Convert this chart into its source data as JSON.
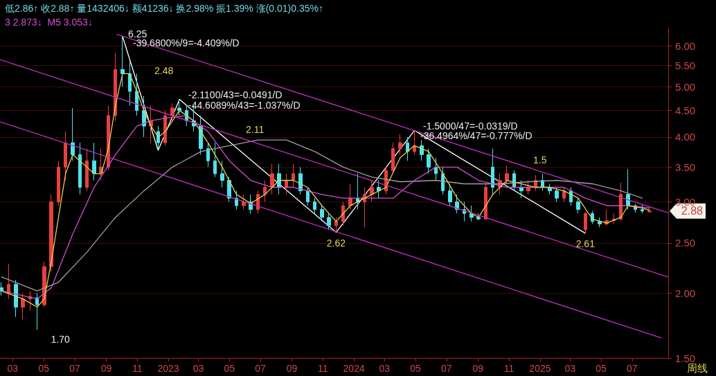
{
  "chart_data": {
    "type": "candlestick",
    "title": "低2.86↑ 收2.88↑ 量1432406↓ 额41236↓ 换2.98% 振1.39% 涨(0.01)0.35%↑",
    "subtitle": "3 2.873↓  M5 3.053↓",
    "x": [
      "2022-02-07",
      "2022-02-21",
      "2022-03-07",
      "2022-03-21",
      "2022-04-04",
      "2022-04-18",
      "2022-05-02",
      "2022-05-16",
      "2022-05-30",
      "2022-06-13",
      "2022-06-27",
      "2022-07-11",
      "2022-07-25",
      "2022-08-08",
      "2022-08-22",
      "2022-09-05",
      "2022-09-19",
      "2022-10-03",
      "2022-10-17",
      "2022-10-31",
      "2022-11-14",
      "2022-11-28",
      "2022-12-12",
      "2022-12-26",
      "2023-01-09",
      "2023-01-23",
      "2023-02-06",
      "2023-02-20",
      "2023-03-06",
      "2023-03-20",
      "2023-04-03",
      "2023-04-17",
      "2023-05-01",
      "2023-05-15",
      "2023-05-29",
      "2023-06-12",
      "2023-06-26",
      "2023-07-10",
      "2023-07-24",
      "2023-08-07",
      "2023-08-21",
      "2023-09-04",
      "2023-09-18",
      "2023-10-02",
      "2023-10-16",
      "2023-10-30",
      "2023-11-13",
      "2023-11-27",
      "2023-12-11",
      "2023-12-25",
      "2024-01-08",
      "2024-01-22",
      "2024-02-05",
      "2024-02-19",
      "2024-03-04",
      "2024-03-18",
      "2024-04-01",
      "2024-04-15",
      "2024-04-29",
      "2024-05-13",
      "2024-05-27",
      "2024-06-10",
      "2024-06-24",
      "2024-07-08",
      "2024-07-22",
      "2024-08-05",
      "2024-08-19",
      "2024-09-02",
      "2024-09-16",
      "2024-09-30",
      "2024-10-14",
      "2024-10-28",
      "2024-11-11",
      "2024-11-25",
      "2024-12-09",
      "2024-12-23",
      "2025-01-06",
      "2025-01-20",
      "2025-02-03",
      "2025-02-17",
      "2025-03-03",
      "2025-03-17",
      "2025-03-31",
      "2025-04-14",
      "2025-04-28",
      "2025-05-12",
      "2025-05-26",
      "2025-06-09",
      "2025-06-23",
      "2025-07-07",
      "2025-07-21",
      "2025-08-04"
    ],
    "ohlc": [
      [
        2.05,
        2.1,
        1.98,
        2.02
      ],
      [
        2.0,
        2.28,
        1.95,
        2.08
      ],
      [
        2.08,
        2.12,
        1.8,
        1.88
      ],
      [
        1.88,
        2.0,
        1.78,
        1.95
      ],
      [
        1.95,
        2.02,
        1.85,
        1.97
      ],
      [
        1.96,
        2.0,
        1.7,
        1.9
      ],
      [
        1.9,
        2.3,
        1.88,
        2.25
      ],
      [
        2.25,
        3.1,
        2.2,
        3.0
      ],
      [
        3.0,
        3.6,
        2.95,
        3.5
      ],
      [
        3.5,
        4.1,
        3.3,
        3.9
      ],
      [
        3.9,
        4.55,
        3.6,
        3.7
      ],
      [
        3.7,
        3.9,
        3.1,
        3.2
      ],
      [
        3.2,
        3.8,
        3.15,
        3.6
      ],
      [
        3.6,
        3.9,
        3.3,
        3.4
      ],
      [
        3.4,
        3.8,
        3.3,
        3.5
      ],
      [
        3.5,
        4.6,
        3.45,
        4.4
      ],
      [
        4.4,
        5.8,
        4.3,
        5.4
      ],
      [
        5.4,
        6.25,
        5.0,
        5.3
      ],
      [
        5.3,
        5.6,
        4.6,
        4.9
      ],
      [
        4.9,
        5.3,
        4.4,
        4.5
      ],
      [
        4.5,
        4.8,
        4.0,
        4.2
      ],
      [
        4.2,
        4.6,
        3.9,
        4.3
      ],
      [
        4.1,
        4.2,
        3.77,
        3.9
      ],
      [
        3.9,
        4.5,
        3.85,
        4.4
      ],
      [
        4.4,
        4.65,
        4.3,
        4.55
      ],
      [
        4.55,
        4.73,
        4.4,
        4.5
      ],
      [
        4.5,
        4.6,
        4.2,
        4.3
      ],
      [
        4.3,
        4.6,
        4.1,
        4.2
      ],
      [
        4.2,
        4.4,
        3.7,
        3.8
      ],
      [
        3.8,
        3.9,
        3.5,
        3.6
      ],
      [
        3.6,
        3.9,
        3.35,
        3.4
      ],
      [
        3.4,
        3.6,
        3.2,
        3.3
      ],
      [
        3.3,
        3.35,
        3.0,
        3.05
      ],
      [
        3.05,
        3.15,
        2.9,
        2.95
      ],
      [
        2.95,
        3.1,
        2.9,
        3.0
      ],
      [
        3.0,
        3.1,
        2.85,
        2.9
      ],
      [
        2.9,
        3.15,
        2.85,
        3.1
      ],
      [
        3.1,
        3.3,
        3.0,
        3.2
      ],
      [
        3.2,
        3.55,
        3.1,
        3.4
      ],
      [
        3.4,
        3.55,
        3.1,
        3.2
      ],
      [
        3.2,
        3.4,
        3.1,
        3.3
      ],
      [
        3.3,
        3.55,
        3.2,
        3.4
      ],
      [
        3.4,
        3.5,
        3.1,
        3.15
      ],
      [
        3.15,
        3.2,
        2.95,
        3.0
      ],
      [
        3.0,
        3.05,
        2.85,
        2.9
      ],
      [
        2.9,
        2.95,
        2.75,
        2.8
      ],
      [
        2.8,
        2.85,
        2.65,
        2.7
      ],
      [
        2.7,
        2.8,
        2.62,
        2.75
      ],
      [
        2.75,
        3.0,
        2.7,
        2.95
      ],
      [
        2.95,
        3.25,
        2.9,
        3.05
      ],
      [
        3.05,
        3.4,
        2.9,
        3.0
      ],
      [
        3.0,
        3.2,
        2.68,
        3.1
      ],
      [
        3.1,
        3.3,
        3.0,
        3.2
      ],
      [
        3.2,
        3.3,
        3.05,
        3.15
      ],
      [
        3.15,
        3.5,
        3.1,
        3.45
      ],
      [
        3.45,
        3.9,
        3.4,
        3.8
      ],
      [
        3.8,
        4.05,
        3.7,
        3.9
      ],
      [
        3.9,
        4.0,
        3.6,
        3.75
      ],
      [
        3.75,
        4.12,
        3.7,
        3.85
      ],
      [
        3.85,
        3.95,
        3.6,
        3.7
      ],
      [
        3.7,
        3.8,
        3.4,
        3.5
      ],
      [
        3.5,
        3.65,
        3.3,
        3.4
      ],
      [
        3.4,
        3.5,
        3.1,
        3.15
      ],
      [
        3.15,
        3.25,
        2.95,
        3.0
      ],
      [
        3.0,
        3.1,
        2.85,
        2.9
      ],
      [
        2.9,
        3.0,
        2.75,
        2.85
      ],
      [
        2.85,
        2.95,
        2.75,
        2.8
      ],
      [
        2.8,
        2.85,
        2.77,
        2.78
      ],
      [
        2.78,
        3.25,
        2.77,
        3.2
      ],
      [
        3.5,
        3.8,
        3.1,
        3.2
      ],
      [
        3.2,
        3.4,
        3.1,
        3.3
      ],
      [
        3.3,
        3.52,
        3.25,
        3.4
      ],
      [
        3.4,
        3.45,
        3.15,
        3.2
      ],
      [
        3.2,
        3.3,
        3.05,
        3.15
      ],
      [
        3.15,
        3.3,
        3.1,
        3.2
      ],
      [
        3.2,
        3.38,
        3.15,
        3.3
      ],
      [
        3.3,
        3.4,
        3.15,
        3.2
      ],
      [
        3.2,
        3.25,
        3.1,
        3.15
      ],
      [
        3.15,
        3.2,
        3.0,
        3.05
      ],
      [
        3.05,
        3.2,
        3.0,
        3.15
      ],
      [
        3.15,
        3.2,
        2.95,
        3.0
      ],
      [
        3.0,
        3.05,
        2.85,
        2.9
      ],
      [
        2.65,
        2.87,
        2.61,
        2.85
      ],
      [
        2.85,
        2.88,
        2.72,
        2.75
      ],
      [
        2.75,
        2.8,
        2.68,
        2.72
      ],
      [
        2.72,
        2.9,
        2.7,
        2.76
      ],
      [
        2.76,
        2.85,
        2.72,
        2.78
      ],
      [
        2.78,
        3.27,
        2.76,
        3.1
      ],
      [
        3.1,
        3.47,
        2.9,
        2.95
      ],
      [
        2.95,
        2.97,
        2.86,
        2.9
      ],
      [
        2.9,
        2.96,
        2.85,
        2.88
      ],
      [
        2.87,
        2.93,
        2.86,
        2.88
      ]
    ],
    "colors": [
      "#4fe3ec",
      "#e8403c",
      "#4fe3ec",
      "#e8403c",
      "#e8403c",
      "#4fe3ec",
      "#e8403c",
      "#e8403c",
      "#e8403c",
      "#e8403c",
      "#4fe3ec",
      "#4fe3ec",
      "#e8403c",
      "#4fe3ec",
      "#e8403c",
      "#e8403c",
      "#e8403c",
      "#4fe3ec",
      "#4fe3ec",
      "#4fe3ec",
      "#4fe3ec",
      "#e8403c",
      "#4fe3ec",
      "#e8403c",
      "#e8403c",
      "#4fe3ec",
      "#4fe3ec",
      "#4fe3ec",
      "#4fe3ec",
      "#4fe3ec",
      "#4fe3ec",
      "#4fe3ec",
      "#4fe3ec",
      "#4fe3ec",
      "#e8403c",
      "#4fe3ec",
      "#e8403c",
      "#e8403c",
      "#e8403c",
      "#4fe3ec",
      "#e8403c",
      "#e8403c",
      "#4fe3ec",
      "#4fe3ec",
      "#4fe3ec",
      "#4fe3ec",
      "#4fe3ec",
      "#e8403c",
      "#e8403c",
      "#e8403c",
      "#4fe3ec",
      "#e8403c",
      "#e8403c",
      "#4fe3ec",
      "#e8403c",
      "#e8403c",
      "#e8403c",
      "#4fe3ec",
      "#e8403c",
      "#4fe3ec",
      "#4fe3ec",
      "#4fe3ec",
      "#4fe3ec",
      "#4fe3ec",
      "#4fe3ec",
      "#4fe3ec",
      "#4fe3ec",
      "#4fe3ec",
      "#e8403c",
      "#4fe3ec",
      "#e8403c",
      "#e8403c",
      "#4fe3ec",
      "#4fe3ec",
      "#e8403c",
      "#e8403c",
      "#4fe3ec",
      "#4fe3ec",
      "#4fe3ec",
      "#e8403c",
      "#4fe3ec",
      "#4fe3ec",
      "#e8403c",
      "#4fe3ec",
      "#4fe3ec",
      "#e8403c",
      "#e8403c",
      "#e8403c",
      "#4fe3ec",
      "#4fe3ec",
      "#4fe3ec",
      "#e8403c"
    ],
    "series": [
      {
        "type": "line",
        "color": "#a0a0a0",
        "x": [
          "2022-02-07",
          "2022-04-18",
          "2022-05-30",
          "2022-07-25",
          "2022-09-19",
          "2022-11-14",
          "2023-01-09",
          "2023-03-06",
          "2023-05-01",
          "2023-06-26",
          "2023-08-21",
          "2023-10-16",
          "2023-12-11",
          "2024-02-05",
          "2024-04-01",
          "2024-06-10",
          "2024-08-05",
          "2024-10-14",
          "2024-12-09",
          "2025-02-03",
          "2025-04-14",
          "2025-06-09",
          "2025-07-21"
        ],
        "values": [
          2.15,
          2.02,
          2.1,
          2.4,
          2.8,
          3.15,
          3.5,
          3.75,
          3.85,
          3.95,
          3.95,
          3.75,
          3.5,
          3.35,
          3.28,
          3.3,
          3.25,
          3.25,
          3.28,
          3.3,
          3.25,
          3.15,
          3.05
        ]
      },
      {
        "type": "line",
        "color": "#d050d0",
        "x": [
          "2022-02-07",
          "2022-04-18",
          "2022-05-16",
          "2022-06-27",
          "2022-08-08",
          "2022-09-19",
          "2022-10-31",
          "2022-11-28",
          "2022-12-26",
          "2023-02-06",
          "2023-03-20",
          "2023-05-01",
          "2023-06-12",
          "2023-07-24",
          "2023-09-04",
          "2023-10-30",
          "2023-12-11",
          "2024-02-05",
          "2024-03-18",
          "2024-04-29",
          "2024-06-10",
          "2024-07-22",
          "2024-09-02",
          "2024-10-28",
          "2024-12-23",
          "2025-02-17",
          "2025-03-31",
          "2025-05-12",
          "2025-06-23",
          "2025-08-04"
        ],
        "values": [
          2.02,
          1.95,
          2.05,
          2.6,
          3.2,
          3.7,
          4.2,
          4.3,
          4.35,
          4.4,
          4.1,
          3.6,
          3.3,
          3.2,
          3.2,
          3.1,
          3.05,
          3.05,
          3.05,
          3.3,
          3.5,
          3.5,
          3.3,
          3.2,
          3.2,
          3.2,
          3.05,
          2.95,
          2.95,
          2.92
        ]
      },
      {
        "type": "line",
        "color": "#e0d050",
        "x": [
          "2022-02-07",
          "2022-03-21",
          "2022-04-18",
          "2022-05-02",
          "2022-05-16",
          "2022-05-30",
          "2022-06-13",
          "2022-06-27",
          "2022-07-11",
          "2022-07-25",
          "2022-08-08",
          "2022-08-22",
          "2022-09-05",
          "2022-09-19",
          "2022-10-03",
          "2022-10-17",
          "2022-10-31",
          "2022-11-14",
          "2022-11-28",
          "2022-12-12",
          "2022-12-26",
          "2023-01-23",
          "2023-02-20",
          "2023-03-20",
          "2023-04-17",
          "2023-05-15",
          "2023-06-12",
          "2023-07-10",
          "2023-08-07",
          "2023-09-04",
          "2023-10-02",
          "2023-10-30",
          "2023-11-27",
          "2023-12-25",
          "2024-02-05",
          "2024-03-04",
          "2024-04-01",
          "2024-04-29",
          "2024-05-27",
          "2024-06-24",
          "2024-07-22",
          "2024-08-19",
          "2024-09-02",
          "2024-09-30",
          "2024-10-28",
          "2024-11-25",
          "2024-12-23",
          "2025-01-20",
          "2025-02-17",
          "2025-03-17",
          "2025-04-14",
          "2025-05-12",
          "2025-06-09",
          "2025-06-23",
          "2025-07-21",
          "2025-08-04"
        ],
        "values": [
          2.02,
          1.95,
          1.88,
          1.95,
          2.3,
          2.8,
          3.4,
          3.7,
          3.6,
          3.5,
          3.4,
          3.4,
          3.8,
          4.6,
          5.3,
          5.3,
          4.9,
          4.5,
          4.2,
          4.0,
          4.1,
          4.5,
          4.3,
          3.9,
          3.5,
          3.1,
          2.98,
          3.1,
          3.3,
          3.3,
          3.2,
          2.95,
          2.75,
          2.95,
          3.1,
          3.2,
          3.65,
          3.85,
          3.75,
          3.4,
          3.05,
          2.85,
          2.8,
          3.1,
          3.3,
          3.25,
          3.2,
          3.2,
          3.15,
          3.05,
          2.78,
          2.73,
          2.8,
          2.95,
          2.92,
          2.89
        ]
      },
      {
        "type": "line",
        "color": "#c030c0",
        "x": [
          "2022-09-22",
          "2025-09-09"
        ],
        "values": [
          6.31,
          2.86
        ]
      },
      {
        "type": "line",
        "color": "#c030c0",
        "x": [
          "2022-02-04",
          "2025-09-09"
        ],
        "values": [
          5.64,
          2.15
        ]
      },
      {
        "type": "line",
        "color": "#c030c0",
        "x": [
          "2022-02-04",
          "2025-08-27"
        ],
        "values": [
          4.28,
          1.64
        ]
      },
      {
        "type": "line",
        "color": "#ffffff",
        "x": [
          "2022-10-03",
          "2022-12-12",
          "2023-01-23",
          "2023-11-27",
          "2024-04-29",
          "2025-03-31"
        ],
        "values": [
          6.25,
          3.77,
          4.73,
          2.62,
          4.12,
          2.61
        ]
      }
    ],
    "xlim": [
      "2022-02-04",
      "2025-09-10"
    ],
    "xticks": [
      {
        "value": "2022-03-01",
        "label": "03"
      },
      {
        "value": "2022-05-01",
        "label": "05"
      },
      {
        "value": "2022-07-01",
        "label": "07"
      },
      {
        "value": "2022-09-01",
        "label": "09"
      },
      {
        "value": "2022-11-01",
        "label": "11"
      },
      {
        "value": "2023-01-01",
        "label": "2023"
      },
      {
        "value": "2023-03-01",
        "label": "03"
      },
      {
        "value": "2023-05-01",
        "label": "05"
      },
      {
        "value": "2023-07-01",
        "label": "07"
      },
      {
        "value": "2023-09-01",
        "label": "09"
      },
      {
        "value": "2023-11-01",
        "label": "11"
      },
      {
        "value": "2024-01-01",
        "label": "2024"
      },
      {
        "value": "2024-03-01",
        "label": "03"
      },
      {
        "value": "2024-05-01",
        "label": "05"
      },
      {
        "value": "2024-07-01",
        "label": "07"
      },
      {
        "value": "2024-09-01",
        "label": "09"
      },
      {
        "value": "2024-11-01",
        "label": "11"
      },
      {
        "value": "2025-01-01",
        "label": "2025"
      },
      {
        "value": "2025-03-01",
        "label": "03"
      },
      {
        "value": "2025-05-01",
        "label": "05"
      },
      {
        "value": "2025-07-01",
        "label": "07"
      }
    ],
    "ylim": [
      1.5,
      6.5
    ],
    "yticks": [
      {
        "value": 1.5,
        "label": "1.50"
      },
      {
        "value": 2,
        "label": "2.00"
      },
      {
        "value": 2.5,
        "label": "2.50"
      },
      {
        "value": 3,
        "label": "3.00"
      },
      {
        "value": 3.5,
        "label": "3.50"
      },
      {
        "value": 4,
        "label": "4.00"
      },
      {
        "value": 4.5,
        "label": "4.50"
      },
      {
        "value": 5,
        "label": "5.00"
      },
      {
        "value": 5.5,
        "label": "5.50"
      },
      {
        "value": 6,
        "label": "6.00"
      }
    ],
    "log": true,
    "grid": "y",
    "marker": "none",
    "annotations": [
      {
        "text": "6.25",
        "x": "2022-10-03",
        "y": 6.25
      },
      "-39.6800%/9=-4.409%/D",
      "2.48",
      "-2.1100/43=-0.0491/D",
      "-44.6089%/43=-1.037%/D",
      "2.11",
      {
        "text": "2.62",
        "x": "2023-11-27",
        "y": 2.62
      },
      "-1.5000/47=-0.0319/D",
      "-36.4964%/47=-0.777%/D",
      "1.5",
      {
        "text": "2.61",
        "x": "2025-03-31",
        "y": 2.61
      },
      {
        "text": "1.70",
        "x": "2022-04-18",
        "y": 1.7
      },
      {
        "text": "2.88",
        "x": "2025-08-04",
        "y": 2.88
      },
      "周线"
    ]
  }
}
